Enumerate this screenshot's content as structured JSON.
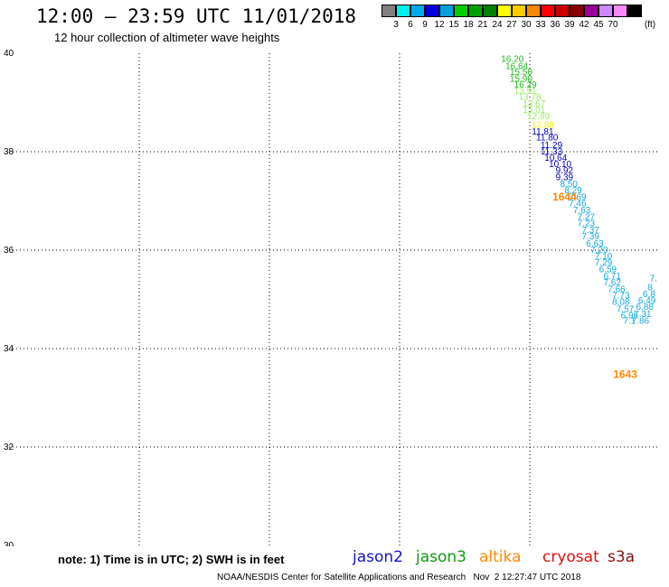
{
  "header": {
    "title": "12:00 – 23:59 UTC 11/01/2018",
    "subtitle": "12 hour collection of altimeter wave heights"
  },
  "colors": {
    "scale": [
      "#808080",
      "#00eeee",
      "#00aaee",
      "#0000dd",
      "#00a0e0",
      "#00cc00",
      "#00a000",
      "#008000",
      "#ffff00",
      "#ffcc00",
      "#ff8800",
      "#ff0000",
      "#cc0000",
      "#880000",
      "#990099",
      "#cc88ff",
      "#ff88ff",
      "#000000"
    ],
    "labels": {
      "green": "#22bb22",
      "lightgreen": "#99ee66",
      "yellow": "#eeee00",
      "navy": "#0000bb",
      "cyan": "#11aadd",
      "orange": "#ff8800"
    }
  },
  "scale": {
    "labels": [
      "3",
      "6",
      "9",
      "12",
      "15",
      "18",
      "21",
      "24",
      "27",
      "30",
      "33",
      "36",
      "39",
      "42",
      "45",
      "70"
    ],
    "unit": "(ft)"
  },
  "note": "note: 1) Time is in UTC; 2) SWH is in feet",
  "satellites": [
    {
      "name": "jason2",
      "color": "#1111cc"
    },
    {
      "name": "jason3",
      "color": "#119911"
    },
    {
      "name": "altika",
      "color": "#ff8800"
    },
    {
      "name": "cryosat",
      "color": "#dd1111"
    },
    {
      "name": "s3a",
      "color": "#881111"
    }
  ],
  "credit": "NOAA/NESDIS Center for Satellite Applications and Research   Nov  2 12:27:47 UTC 2018",
  "chart_data": {
    "type": "scatter",
    "xlim": [
      -180,
      -165
    ],
    "ylim": [
      30,
      40
    ],
    "xticks": [
      "-180",
      "-177",
      "-174",
      "-171",
      "-168",
      "-165"
    ],
    "yticks": [
      "40",
      "38",
      "36",
      "34",
      "32",
      "30"
    ],
    "grid": true,
    "times": [
      {
        "label": "1644",
        "lon": -167.2,
        "lat": 37.1
      },
      {
        "label": "1643",
        "lon": -165.8,
        "lat": 33.5
      }
    ],
    "points": [
      {
        "lon": -168.4,
        "lat": 39.9,
        "value": "16.20",
        "color": "green"
      },
      {
        "lon": -168.3,
        "lat": 39.75,
        "value": "16.64",
        "color": "green"
      },
      {
        "lon": -168.2,
        "lat": 39.63,
        "value": "15.50",
        "color": "green"
      },
      {
        "lon": -168.2,
        "lat": 39.5,
        "value": "15.90",
        "color": "green"
      },
      {
        "lon": -168.1,
        "lat": 39.38,
        "value": "16.29",
        "color": "green"
      },
      {
        "lon": -168.1,
        "lat": 39.25,
        "value": "13.91",
        "color": "lightgreen"
      },
      {
        "lon": -168.0,
        "lat": 39.13,
        "value": "13.78",
        "color": "lightgreen"
      },
      {
        "lon": -167.9,
        "lat": 38.99,
        "value": "13.67",
        "color": "lightgreen"
      },
      {
        "lon": -167.9,
        "lat": 38.86,
        "value": "13.01",
        "color": "lightgreen"
      },
      {
        "lon": -167.8,
        "lat": 38.73,
        "value": "12.89",
        "color": "lightgreen"
      },
      {
        "lon": -167.7,
        "lat": 38.56,
        "value": "12.88",
        "color": "yellow"
      },
      {
        "lon": -167.7,
        "lat": 38.42,
        "value": "11.81",
        "color": "navy"
      },
      {
        "lon": -167.6,
        "lat": 38.3,
        "value": "11.80",
        "color": "navy"
      },
      {
        "lon": -167.5,
        "lat": 38.15,
        "value": "11.29",
        "color": "navy"
      },
      {
        "lon": -167.5,
        "lat": 38.02,
        "value": "11.33",
        "color": "navy"
      },
      {
        "lon": -167.4,
        "lat": 37.89,
        "value": "10.64",
        "color": "navy"
      },
      {
        "lon": -167.3,
        "lat": 37.76,
        "value": "10.10",
        "color": "navy"
      },
      {
        "lon": -167.2,
        "lat": 37.63,
        "value": "9.92",
        "color": "navy"
      },
      {
        "lon": -167.2,
        "lat": 37.5,
        "value": "9.39",
        "color": "navy"
      },
      {
        "lon": -167.1,
        "lat": 37.36,
        "value": "8.50",
        "color": "cyan"
      },
      {
        "lon": -167.0,
        "lat": 37.23,
        "value": "8.29",
        "color": "cyan"
      },
      {
        "lon": -166.9,
        "lat": 37.09,
        "value": "7.69",
        "color": "cyan"
      },
      {
        "lon": -166.9,
        "lat": 36.96,
        "value": "7.46",
        "color": "cyan"
      },
      {
        "lon": -166.8,
        "lat": 36.83,
        "value": "7.63",
        "color": "cyan"
      },
      {
        "lon": -166.7,
        "lat": 36.69,
        "value": "7.27",
        "color": "cyan"
      },
      {
        "lon": -166.7,
        "lat": 36.56,
        "value": "7.23",
        "color": "cyan"
      },
      {
        "lon": -166.6,
        "lat": 36.42,
        "value": "7.37",
        "color": "cyan"
      },
      {
        "lon": -166.6,
        "lat": 36.29,
        "value": "7.39",
        "color": "cyan"
      },
      {
        "lon": -166.5,
        "lat": 36.15,
        "value": "6.63",
        "color": "cyan"
      },
      {
        "lon": -166.4,
        "lat": 36.02,
        "value": "7.20",
        "color": "cyan"
      },
      {
        "lon": -166.3,
        "lat": 35.89,
        "value": "7.10",
        "color": "cyan"
      },
      {
        "lon": -166.3,
        "lat": 35.76,
        "value": "7.29",
        "color": "cyan"
      },
      {
        "lon": -166.2,
        "lat": 35.62,
        "value": "6.59",
        "color": "cyan"
      },
      {
        "lon": -166.1,
        "lat": 35.49,
        "value": "6.71",
        "color": "cyan"
      },
      {
        "lon": -166.1,
        "lat": 35.36,
        "value": "7.62",
        "color": "cyan"
      },
      {
        "lon": -166.0,
        "lat": 35.22,
        "value": "7.66",
        "color": "cyan"
      },
      {
        "lon": -165.9,
        "lat": 35.09,
        "value": "7.73",
        "color": "cyan"
      },
      {
        "lon": -165.9,
        "lat": 34.96,
        "value": "8.08",
        "color": "cyan"
      },
      {
        "lon": -165.8,
        "lat": 34.82,
        "value": "7.57",
        "color": "cyan"
      },
      {
        "lon": -165.7,
        "lat": 34.69,
        "value": "6.96",
        "color": "cyan"
      },
      {
        "lon": -165.7,
        "lat": 34.58,
        "value": "7.1",
        "color": "cyan"
      },
      {
        "lon": -165.45,
        "lat": 34.58,
        "value": "7.86",
        "color": "cyan"
      },
      {
        "lon": -165.4,
        "lat": 34.72,
        "value": "7.31",
        "color": "cyan"
      },
      {
        "lon": -165.35,
        "lat": 34.86,
        "value": "6.88",
        "color": "cyan"
      },
      {
        "lon": -165.3,
        "lat": 34.99,
        "value": "6.49",
        "color": "cyan"
      },
      {
        "lon": -165.25,
        "lat": 35.12,
        "value": "6.8",
        "color": "cyan"
      },
      {
        "lon": -165.2,
        "lat": 35.26,
        "value": "8.",
        "color": "cyan"
      },
      {
        "lon": -165.15,
        "lat": 35.44,
        "value": "7.",
        "color": "cyan"
      }
    ]
  }
}
